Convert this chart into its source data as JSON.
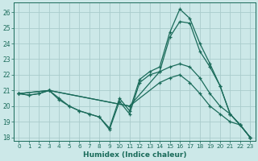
{
  "xlabel": "Humidex (Indice chaleur)",
  "background_color": "#cce8e8",
  "grid_color": "#aacccc",
  "line_color": "#1a6b5a",
  "xlim": [
    0,
    23
  ],
  "ylim": [
    18,
    26.5
  ],
  "yticks": [
    18,
    19,
    20,
    21,
    22,
    23,
    24,
    25,
    26
  ],
  "xticks": [
    0,
    1,
    2,
    3,
    4,
    5,
    6,
    7,
    8,
    9,
    10,
    11,
    12,
    13,
    14,
    15,
    16,
    17,
    18,
    19,
    20,
    21,
    22,
    23
  ],
  "lines": [
    {
      "x": [
        0,
        1,
        2,
        3,
        4,
        5,
        6,
        7,
        8,
        9,
        10,
        11,
        12,
        13,
        14,
        15,
        16,
        17,
        18,
        19,
        20,
        21,
        22,
        23
      ],
      "y": [
        20.8,
        20.7,
        20.8,
        21.0,
        20.5,
        20.0,
        19.7,
        19.5,
        19.3,
        18.6,
        20.5,
        19.7,
        21.7,
        22.2,
        22.5,
        24.7,
        26.2,
        25.6,
        24.0,
        22.7,
        21.3,
        19.5,
        18.8,
        18.0
      ]
    },
    {
      "x": [
        0,
        1,
        2,
        3,
        4,
        5,
        6,
        7,
        8,
        9,
        10,
        11,
        12,
        13,
        14,
        15,
        16,
        17,
        18,
        19,
        20,
        21,
        22,
        23
      ],
      "y": [
        20.8,
        20.7,
        20.8,
        21.0,
        20.4,
        20.0,
        19.7,
        19.5,
        19.3,
        18.5,
        20.3,
        19.5,
        21.5,
        22.0,
        22.2,
        24.4,
        25.4,
        25.3,
        23.5,
        22.5,
        21.3,
        19.5,
        18.8,
        18.0
      ]
    },
    {
      "x": [
        0,
        3,
        11,
        14,
        15,
        16,
        17,
        18,
        19,
        20,
        21,
        22,
        23
      ],
      "y": [
        20.8,
        21.0,
        20.0,
        22.2,
        22.5,
        22.7,
        22.5,
        21.8,
        20.8,
        20.0,
        19.5,
        18.8,
        18.0
      ]
    },
    {
      "x": [
        0,
        3,
        11,
        14,
        15,
        16,
        17,
        18,
        19,
        20,
        21,
        22,
        23
      ],
      "y": [
        20.8,
        21.0,
        20.0,
        21.5,
        21.8,
        22.0,
        21.5,
        20.8,
        20.0,
        19.5,
        19.0,
        18.8,
        18.0
      ]
    }
  ]
}
